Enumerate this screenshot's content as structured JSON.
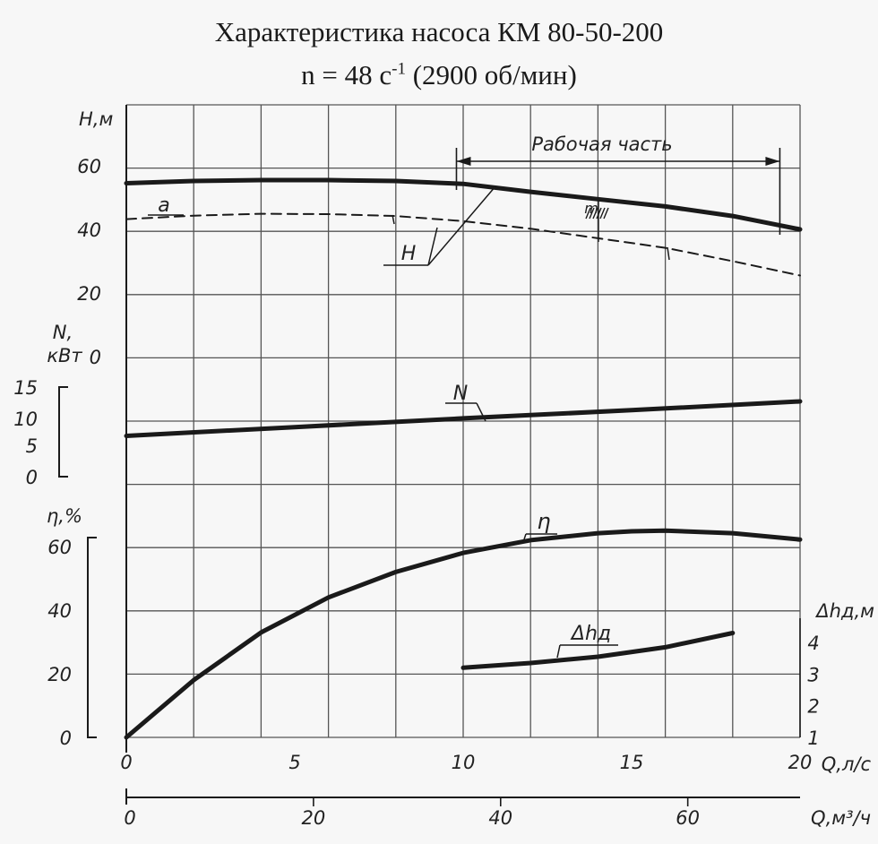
{
  "title": "Характеристика насоса КМ 80-50-200",
  "subtitle": {
    "prefix": "n = 48 c",
    "exponent": "-1",
    "suffix": " (2900 об/мин)"
  },
  "chart_data": {
    "type": "line",
    "title": "Характеристика насоса КМ 80-50-200",
    "subtitle": "n = 48 c-1 (2900 об/мин)",
    "grid": true,
    "x": {
      "label": "Q,л/с",
      "range": [
        0,
        20
      ],
      "ticks": [
        "0",
        "5",
        "10",
        "15",
        "20"
      ]
    },
    "x2": {
      "label": "Q,м³/ч",
      "range": [
        0,
        72
      ],
      "ticks": [
        "0",
        "20",
        "40",
        "60"
      ]
    },
    "panels": [
      {
        "y_label": "H,м",
        "y_range": [
          0,
          70
        ],
        "y_ticks": [
          "0",
          "20",
          "40",
          "60"
        ],
        "series": [
          {
            "name": "H",
            "style": "solid",
            "x": [
              0,
              2,
              4,
              6,
              8,
              10,
              12,
              14,
              16,
              18,
              20
            ],
            "y": [
              54.5,
              55.2,
              55.5,
              55.5,
              55.2,
              54.3,
              51.8,
              49.5,
              47.2,
              44.2,
              40
            ]
          },
          {
            "name": "a",
            "style": "dashed",
            "x": [
              0,
              2,
              4,
              6,
              8,
              10,
              12,
              14,
              16,
              18,
              20
            ],
            "y": [
              43.2,
              44.3,
              44.9,
              44.8,
              44.2,
              42.6,
              40.2,
              37.2,
              34.2,
              30,
              25.5
            ]
          }
        ],
        "annotations": [
          "Рабочая часть",
          "H",
          "a"
        ],
        "working_range": [
          9.8,
          19.4
        ]
      },
      {
        "y_label_top": "N,",
        "y_label_bottom": "кВт",
        "y_range": [
          0,
          15
        ],
        "y_ticks": [
          "0",
          "5",
          "10",
          "15"
        ],
        "series": [
          {
            "name": "N",
            "style": "solid",
            "x": [
              0,
              5,
              10,
              15,
              20
            ],
            "y": [
              6.5,
              7.9,
              9.3,
              10.6,
              12
            ]
          }
        ],
        "annotations": [
          "N"
        ]
      },
      {
        "y_label": "η,%",
        "y_range": [
          0,
          70
        ],
        "y_ticks": [
          "0",
          "20",
          "40",
          "60"
        ],
        "series": [
          {
            "name": "η",
            "style": "solid",
            "x": [
              0,
              2,
              4,
              6,
              8,
              10,
              12,
              14,
              15,
              16,
              18,
              20
            ],
            "y": [
              0,
              18,
              33,
              44,
              52,
              58,
              62,
              64.2,
              64.8,
              65,
              64.2,
              62.2
            ]
          }
        ],
        "annotations": [
          "η"
        ]
      },
      {
        "y_label": "Δhд,м",
        "y_range": [
          1,
          4
        ],
        "y_ticks": [
          "1",
          "2",
          "3",
          "4"
        ],
        "series": [
          {
            "name": "Δhд",
            "style": "solid",
            "x": [
              10,
              12,
              14,
              16,
              18
            ],
            "y": [
              3.2,
              3.35,
              3.55,
              3.85,
              4.3
            ]
          }
        ],
        "annotations": [
          "Δhд"
        ]
      }
    ],
    "labels": {
      "working_part": "Рабочая часть",
      "H": "H",
      "a": "a",
      "N": "N",
      "eta": "η",
      "dh": "Δhд",
      "m": "m"
    }
  }
}
